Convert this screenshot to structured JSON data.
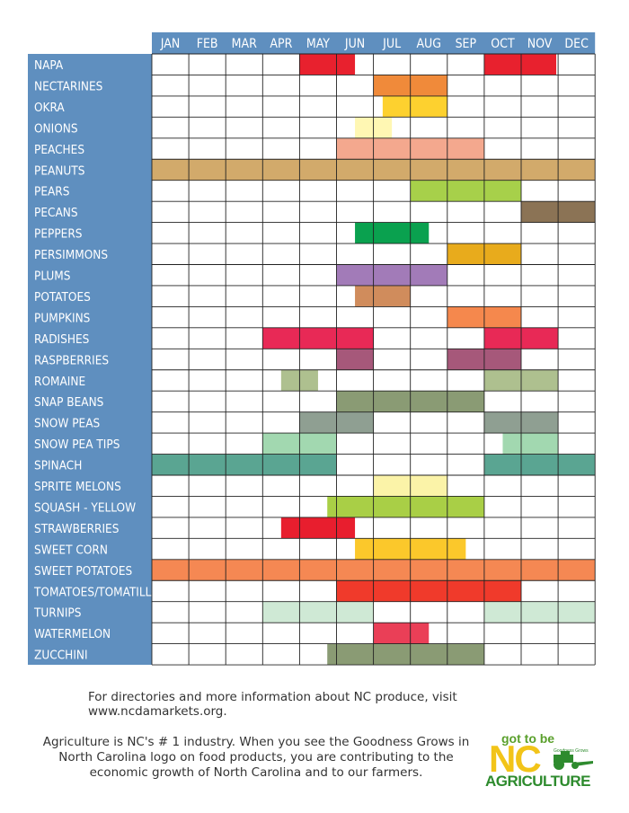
{
  "chart_data": {
    "type": "table",
    "months": [
      "JAN",
      "FEB",
      "MAR",
      "APR",
      "MAY",
      "JUN",
      "JUL",
      "AUG",
      "SEP",
      "OCT",
      "NOV",
      "DEC"
    ],
    "rows": [
      {
        "name": "NAPA",
        "color": "#e8212e",
        "spans": [
          [
            5,
            6.5
          ],
          [
            10,
            11.95
          ]
        ]
      },
      {
        "name": "NECTARINES",
        "color": "#f08a3a",
        "spans": [
          [
            7,
            9
          ]
        ]
      },
      {
        "name": "OKRA",
        "color": "#fdd12f",
        "spans": [
          [
            7.25,
            9
          ]
        ]
      },
      {
        "name": "ONIONS",
        "color": "#fff7b3",
        "spans": [
          [
            6.5,
            7.5
          ]
        ]
      },
      {
        "name": "PEACHES",
        "color": "#f4a88e",
        "spans": [
          [
            6,
            10
          ]
        ]
      },
      {
        "name": "PEANUTS",
        "color": "#d2aa6b",
        "spans": [
          [
            1,
            13
          ]
        ]
      },
      {
        "name": "PEARS",
        "color": "#a7d04a",
        "spans": [
          [
            8,
            11
          ]
        ]
      },
      {
        "name": "PECANS",
        "color": "#8b7355",
        "spans": [
          [
            11,
            13
          ]
        ]
      },
      {
        "name": "PEPPERS",
        "color": "#0aa14f",
        "spans": [
          [
            6.5,
            8.5
          ]
        ]
      },
      {
        "name": "PERSIMMONS",
        "color": "#e8ab1c",
        "spans": [
          [
            9,
            11
          ]
        ]
      },
      {
        "name": "PLUMS",
        "color": "#a27bb8",
        "spans": [
          [
            6,
            9
          ]
        ]
      },
      {
        "name": "POTATOES",
        "color": "#d08c5c",
        "spans": [
          [
            6.5,
            8
          ]
        ]
      },
      {
        "name": "PUMPKINS",
        "color": "#f5884d",
        "spans": [
          [
            9,
            11
          ]
        ]
      },
      {
        "name": "RADISHES",
        "color": "#e82956",
        "spans": [
          [
            4,
            7
          ],
          [
            10,
            12
          ]
        ]
      },
      {
        "name": "RASPBERRIES",
        "color": "#a6587a",
        "spans": [
          [
            6,
            7
          ],
          [
            9,
            11
          ]
        ]
      },
      {
        "name": "ROMAINE",
        "color": "#aec08f",
        "spans": [
          [
            4.5,
            5.5
          ],
          [
            10,
            12
          ]
        ]
      },
      {
        "name": "SNAP BEANS",
        "color": "#8a9b74",
        "spans": [
          [
            6,
            10
          ]
        ]
      },
      {
        "name": "SNOW PEAS",
        "color": "#8f9f92",
        "spans": [
          [
            5,
            7
          ],
          [
            10,
            12
          ]
        ]
      },
      {
        "name": "SNOW PEA TIPS",
        "color": "#a2d8b0",
        "spans": [
          [
            4,
            6
          ],
          [
            10.5,
            12
          ]
        ]
      },
      {
        "name": "SPINACH",
        "color": "#5aa592",
        "spans": [
          [
            1,
            6
          ],
          [
            10,
            13
          ]
        ]
      },
      {
        "name": "SPRITE MELONS",
        "color": "#fbf3a8",
        "spans": [
          [
            7,
            9
          ]
        ]
      },
      {
        "name": "SQUASH - YELLOW",
        "color": "#a9cf46",
        "spans": [
          [
            5.75,
            10
          ]
        ]
      },
      {
        "name": "STRAWBERRIES",
        "color": "#e81e2e",
        "spans": [
          [
            4.5,
            6.5
          ]
        ]
      },
      {
        "name": "SWEET CORN",
        "color": "#fbc82b",
        "spans": [
          [
            6.5,
            9.5
          ]
        ]
      },
      {
        "name": "SWEET POTATOES",
        "color": "#f58853",
        "spans": [
          [
            1,
            13
          ]
        ]
      },
      {
        "name": "TOMATOES/TOMATILLOS",
        "color": "#f03a2b",
        "spans": [
          [
            6,
            11
          ]
        ]
      },
      {
        "name": "TURNIPS",
        "color": "#cfe9d5",
        "spans": [
          [
            4,
            7
          ],
          [
            10,
            13
          ]
        ]
      },
      {
        "name": "WATERMELON",
        "color": "#ea3f57",
        "spans": [
          [
            7,
            8.5
          ]
        ]
      },
      {
        "name": "ZUCCHINI",
        "color": "#8a9b74",
        "spans": [
          [
            5.75,
            10
          ]
        ]
      }
    ],
    "colors": {
      "header_bg": "#5f8fbf",
      "label_text": "#ffffff",
      "grid": "#222222"
    }
  },
  "footer": {
    "link_text": "For directories and more information about NC produce, visit www.ncdamarkets.org.",
    "blurb": "Agriculture is NC's # 1 industry.  When you see the Goodness Grows in North Carolina logo on food products, you are contributing to the economic growth of North Carolina and to our farmers."
  },
  "logo": {
    "got_to_be": "got to be",
    "nc": "NC",
    "agriculture": "AGRICULTURE",
    "goodness_grows": "Goodness Grows"
  }
}
